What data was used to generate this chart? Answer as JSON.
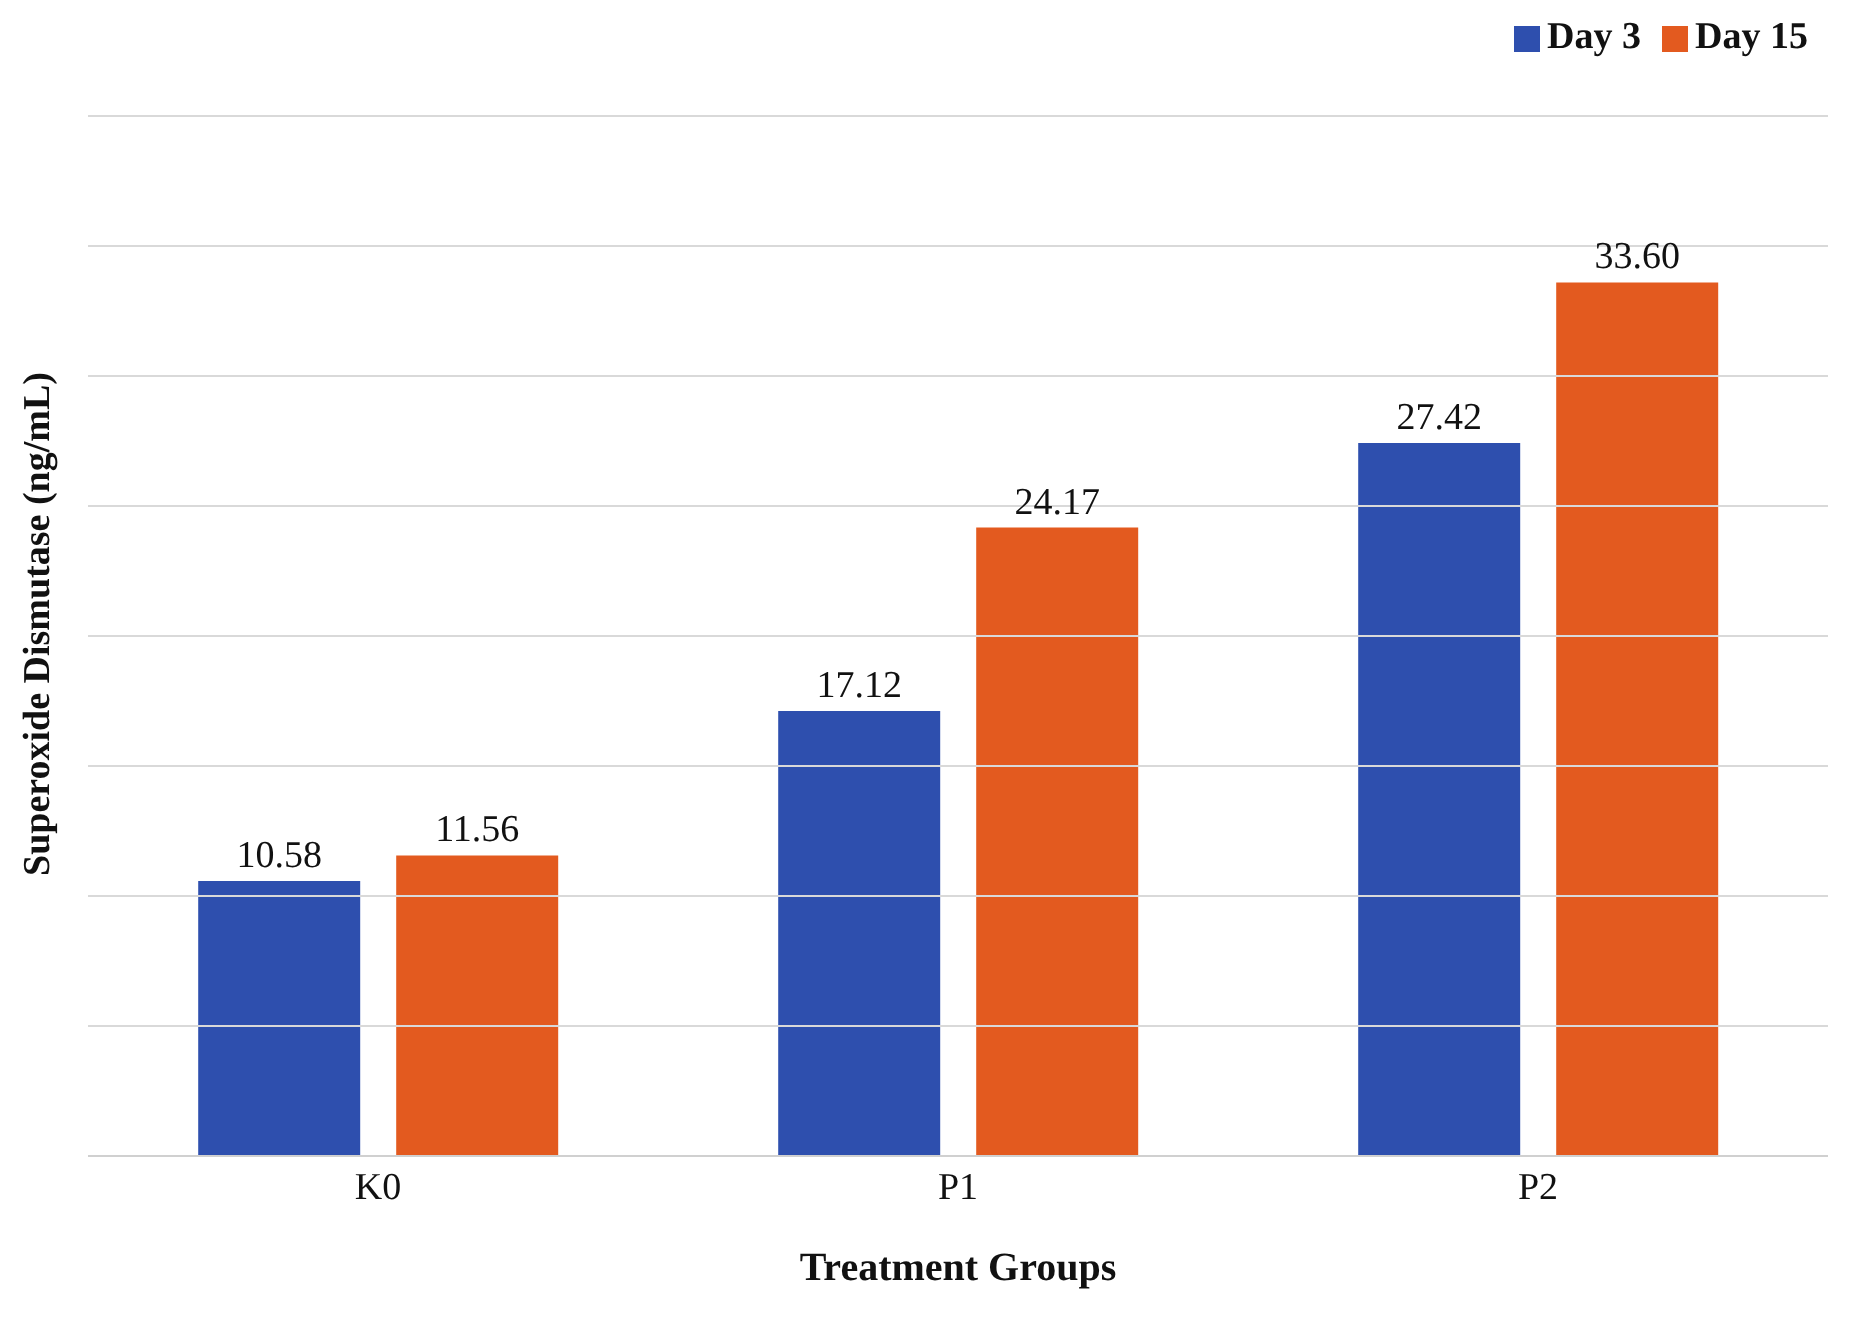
{
  "chart_data": {
    "type": "bar",
    "xlabel": "Treatment Groups",
    "ylabel": "Superoxide Dismutase (ng/mL)",
    "categories": [
      "K0",
      "P1",
      "P2"
    ],
    "series": [
      {
        "name": "Day 3",
        "color": "#2e4fae",
        "values": [
          10.58,
          17.12,
          27.42
        ],
        "value_labels": [
          "10.58",
          "17.12",
          "27.42"
        ]
      },
      {
        "name": "Day 15",
        "color": "#e35a1f",
        "values": [
          11.56,
          24.17,
          33.6
        ],
        "value_labels": [
          "11.56",
          "24.17",
          "33.60"
        ]
      }
    ],
    "ylim": [
      0,
      40
    ],
    "yticks": [
      {
        "value": 0,
        "label": null
      },
      {
        "value": 5,
        "label": null
      },
      {
        "value": 10,
        "label": null
      },
      {
        "value": 15,
        "label": null
      },
      {
        "value": 20,
        "label": null
      },
      {
        "value": 25,
        "label": null
      },
      {
        "value": 30,
        "label": null
      },
      {
        "value": 35,
        "label": null
      },
      {
        "value": 40,
        "label": null
      }
    ],
    "tick_labels": "x",
    "grid": "y",
    "legend": "top right"
  }
}
